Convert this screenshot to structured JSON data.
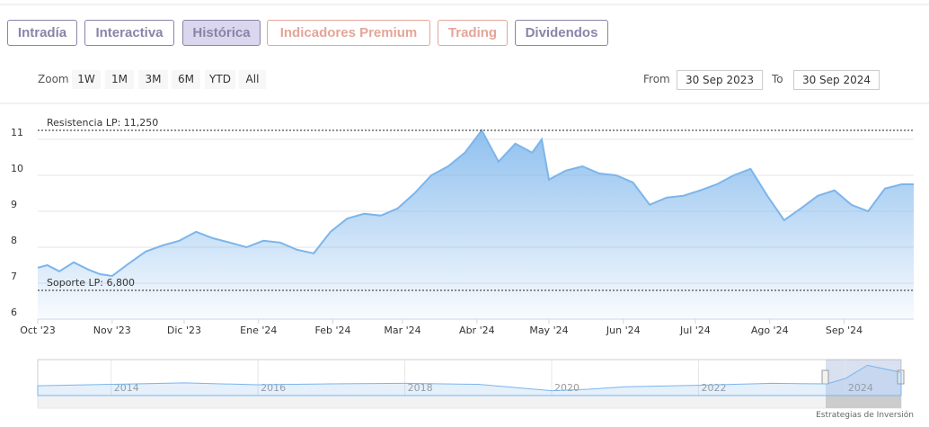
{
  "tabs": [
    "Intradía",
    "Interactiva",
    "Histórica",
    "Indicadores Premium",
    "Trading",
    "Dividendos"
  ],
  "zoom": {
    "label": "Zoom",
    "buttons": [
      "1W",
      "1M",
      "3M",
      "6M",
      "YTD",
      "All"
    ]
  },
  "range": {
    "from_label": "From",
    "from": "30 Sep 2023",
    "to_label": "To",
    "to": "30 Sep 2024"
  },
  "credit": "Estrategias de Inversión",
  "chart_data": {
    "type": "area",
    "x": [
      "2023-10-01",
      "2023-10-05",
      "2023-10-10",
      "2023-10-16",
      "2023-10-22",
      "2023-10-27",
      "2023-11-01",
      "2023-11-08",
      "2023-11-15",
      "2023-11-22",
      "2023-11-29",
      "2023-12-06",
      "2023-12-13",
      "2023-12-20",
      "2023-12-27",
      "2024-01-03",
      "2024-01-10",
      "2024-01-17",
      "2024-01-24",
      "2024-01-31",
      "2024-02-07",
      "2024-02-14",
      "2024-02-21",
      "2024-02-28",
      "2024-03-06",
      "2024-03-13",
      "2024-03-20",
      "2024-03-27",
      "2024-04-03",
      "2024-04-10",
      "2024-04-17",
      "2024-04-24",
      "2024-04-28",
      "2024-05-01",
      "2024-05-08",
      "2024-05-15",
      "2024-05-22",
      "2024-05-29",
      "2024-06-05",
      "2024-06-12",
      "2024-06-19",
      "2024-06-26",
      "2024-07-03",
      "2024-07-10",
      "2024-07-17",
      "2024-07-24",
      "2024-07-31",
      "2024-08-07",
      "2024-08-14",
      "2024-08-21",
      "2024-08-28",
      "2024-09-04",
      "2024-09-11",
      "2024-09-18",
      "2024-09-25",
      "2024-09-30"
    ],
    "series": [
      {
        "color": "#7cb5ec",
        "values": [
          7.43,
          7.5,
          7.33,
          7.58,
          7.38,
          7.25,
          7.2,
          7.55,
          7.88,
          8.05,
          8.18,
          8.43,
          8.25,
          8.13,
          8.0,
          8.18,
          8.13,
          7.93,
          7.83,
          8.43,
          8.8,
          8.93,
          8.88,
          9.08,
          9.5,
          10.0,
          10.25,
          10.63,
          11.25,
          10.38,
          10.88,
          10.63,
          11.0,
          9.88,
          10.13,
          10.25,
          10.05,
          10.0,
          9.8,
          9.18,
          9.38,
          9.43,
          9.58,
          9.75,
          10.0,
          10.18,
          9.43,
          8.75,
          9.08,
          9.43,
          9.58,
          9.18,
          9.0,
          9.63,
          9.75,
          9.75
        ]
      }
    ],
    "xlim": [
      "2023-10-01",
      "2024-09-30"
    ],
    "xticks": [
      {
        "value": "2023-10-01",
        "label": "Oct '23"
      },
      {
        "value": "2023-11-01",
        "label": "Nov '23"
      },
      {
        "value": "2023-12-01",
        "label": "Dic '23"
      },
      {
        "value": "2024-01-01",
        "label": "Ene '24"
      },
      {
        "value": "2024-02-01",
        "label": "Feb '24"
      },
      {
        "value": "2024-03-01",
        "label": "Mar '24"
      },
      {
        "value": "2024-04-01",
        "label": "Abr '24"
      },
      {
        "value": "2024-05-01",
        "label": "May '24"
      },
      {
        "value": "2024-06-01",
        "label": "Jun '24"
      },
      {
        "value": "2024-07-01",
        "label": "Jul '24"
      },
      {
        "value": "2024-08-01",
        "label": "Ago '24"
      },
      {
        "value": "2024-09-01",
        "label": "Sep '24"
      }
    ],
    "ylim": [
      6,
      12
    ],
    "yticks": [
      6,
      7,
      8,
      9,
      10,
      11
    ],
    "grid": true,
    "annotations": [
      {
        "label": "Resistencia LP: 11,250",
        "value": 11.25
      },
      {
        "label": "Soporte LP: 6,800",
        "value": 6.8
      }
    ],
    "navigator": {
      "x": [
        2013,
        2014,
        2015,
        2016,
        2017,
        2018,
        2019,
        2020,
        2020.5,
        2021,
        2022,
        2023,
        2023.75,
        2024,
        2024.3,
        2024.76
      ],
      "values": [
        7.0,
        7.3,
        7.6,
        7.2,
        7.4,
        7.5,
        7.3,
        6.0,
        6.3,
        6.8,
        7.1,
        7.5,
        7.4,
        8.5,
        11.2,
        9.75
      ],
      "xlim": [
        2013,
        2024.76
      ],
      "ylim": [
        5,
        12
      ],
      "xticks": [
        2014,
        2016,
        2018,
        2020,
        2022,
        2024
      ]
    }
  }
}
